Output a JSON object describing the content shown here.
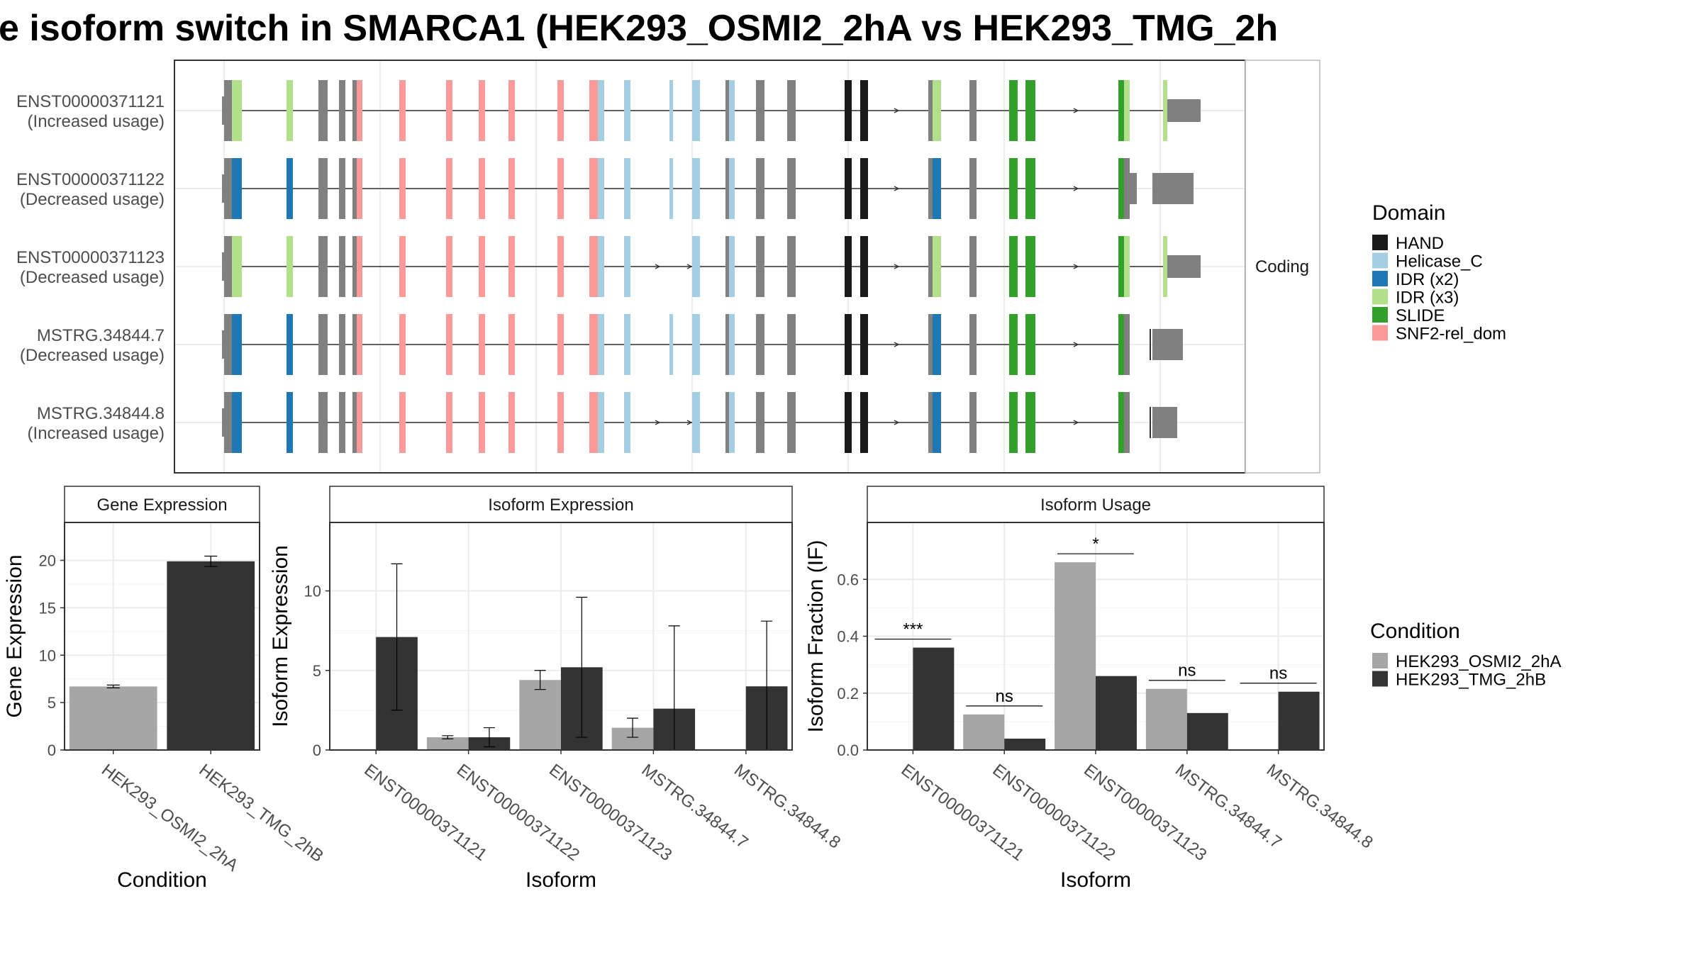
{
  "title": "e isoform switch in SMARCA1 (HEK293_OSMI2_2hA vs HEK293_TMG_2h",
  "structure_panel": {
    "strip_label": "Coding",
    "isoforms": [
      {
        "id": "ENST00000371121",
        "usage": "(Increased usage)"
      },
      {
        "id": "ENST00000371122",
        "usage": "(Decreased usage)"
      },
      {
        "id": "ENST00000371123",
        "usage": "(Decreased usage)"
      },
      {
        "id": "MSTRG.34844.7",
        "usage": "(Decreased usage)"
      },
      {
        "id": "MSTRG.34844.8",
        "usage": "(Increased usage)"
      }
    ],
    "legend_title": "Domain",
    "domains": [
      {
        "name": "HAND",
        "color": "#1a1a1a"
      },
      {
        "name": "Helicase_C",
        "color": "#a6cee3"
      },
      {
        "name": "IDR (x2)",
        "color": "#1f78b4"
      },
      {
        "name": "IDR (x3)",
        "color": "#b2df8a"
      },
      {
        "name": "SLIDE",
        "color": "#33a02c"
      },
      {
        "name": "SNF2-rel_dom",
        "color": "#fb9a99"
      }
    ]
  },
  "condition_legend": {
    "title": "Condition",
    "items": [
      {
        "name": "HEK293_OSMI2_2hA",
        "color": "#a6a6a6"
      },
      {
        "name": "HEK293_TMG_2hB",
        "color": "#333333"
      }
    ]
  },
  "chart_data": [
    {
      "type": "bar",
      "strip": "Gene Expression",
      "xlabel": "Condition",
      "ylabel": "Gene Expression",
      "ylim": [
        0,
        24
      ],
      "yticks": [
        0,
        5,
        10,
        15,
        20
      ],
      "categories": [
        "HEK293_OSMI2_2hA",
        "HEK293_TMG_2hB"
      ],
      "values": [
        6.7,
        19.9
      ],
      "errors": [
        0.15,
        0.55
      ]
    },
    {
      "type": "bar",
      "strip": "Isoform Expression",
      "xlabel": "Isoform",
      "ylabel": "Isoform Expression",
      "ylim": [
        0,
        14.3
      ],
      "yticks": [
        0,
        5,
        10
      ],
      "categories": [
        "ENST00000371121",
        "ENST00000371122",
        "ENST00000371123",
        "MSTRG.34844.7",
        "MSTRG.34844.8"
      ],
      "series": [
        {
          "name": "HEK293_OSMI2_2hA",
          "values": [
            0.0,
            0.8,
            4.4,
            1.4,
            0.0
          ],
          "errors": [
            0.0,
            0.1,
            0.6,
            0.6,
            0.0
          ]
        },
        {
          "name": "HEK293_TMG_2hB",
          "values": [
            7.1,
            0.8,
            5.2,
            2.6,
            4.0
          ],
          "errors": [
            4.6,
            0.6,
            4.4,
            5.2,
            4.1
          ]
        }
      ]
    },
    {
      "type": "bar",
      "strip": "Isoform Usage",
      "xlabel": "Isoform",
      "ylabel": "Isoform Fraction (IF)",
      "ylim": [
        0,
        0.8
      ],
      "yticks": [
        0.0,
        0.2,
        0.4,
        0.6
      ],
      "categories": [
        "ENST00000371121",
        "ENST00000371122",
        "ENST00000371123",
        "MSTRG.34844.7",
        "MSTRG.34844.8"
      ],
      "series": [
        {
          "name": "HEK293_OSMI2_2hA",
          "values": [
            0.0,
            0.125,
            0.66,
            0.215,
            0.0
          ]
        },
        {
          "name": "HEK293_TMG_2hB",
          "values": [
            0.36,
            0.04,
            0.26,
            0.13,
            0.205
          ]
        }
      ],
      "significance": [
        "***",
        "ns",
        "*",
        "ns",
        "ns"
      ]
    }
  ]
}
